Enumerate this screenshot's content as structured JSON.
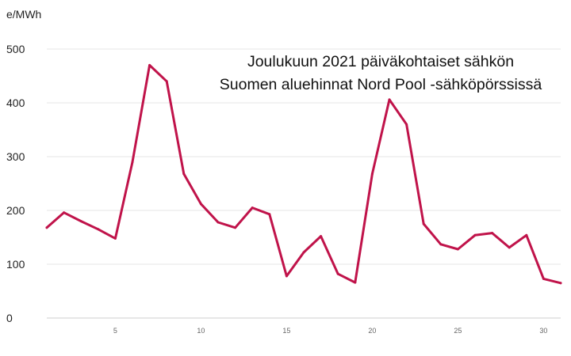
{
  "chart_data": {
    "type": "line",
    "title": [
      "Joulukuun 2021 päiväkohtaiset sähkön",
      "Suomen aluehinnat Nord Pool -sähköpörssissä"
    ],
    "ylabel": "e/MWh",
    "xlabel": "",
    "ylim": [
      0,
      500
    ],
    "xlim": [
      1,
      31
    ],
    "yticks": [
      0,
      100,
      200,
      300,
      400,
      500
    ],
    "xticks": [
      5,
      10,
      15,
      20,
      25,
      30
    ],
    "grid": "horizontal",
    "series": [
      {
        "color": "#c0134a",
        "x": [
          1,
          2,
          3,
          4,
          5,
          6,
          7,
          8,
          9,
          10,
          11,
          12,
          13,
          14,
          15,
          16,
          17,
          18,
          19,
          20,
          21,
          22,
          23,
          24,
          25,
          26,
          27,
          28,
          29,
          30,
          31
        ],
        "values": [
          168,
          196,
          180,
          165,
          148,
          290,
          470,
          440,
          268,
          212,
          178,
          168,
          205,
          193,
          78,
          122,
          152,
          82,
          66,
          268,
          406,
          360,
          175,
          137,
          128,
          154,
          158,
          131,
          154,
          73,
          65
        ]
      }
    ]
  }
}
